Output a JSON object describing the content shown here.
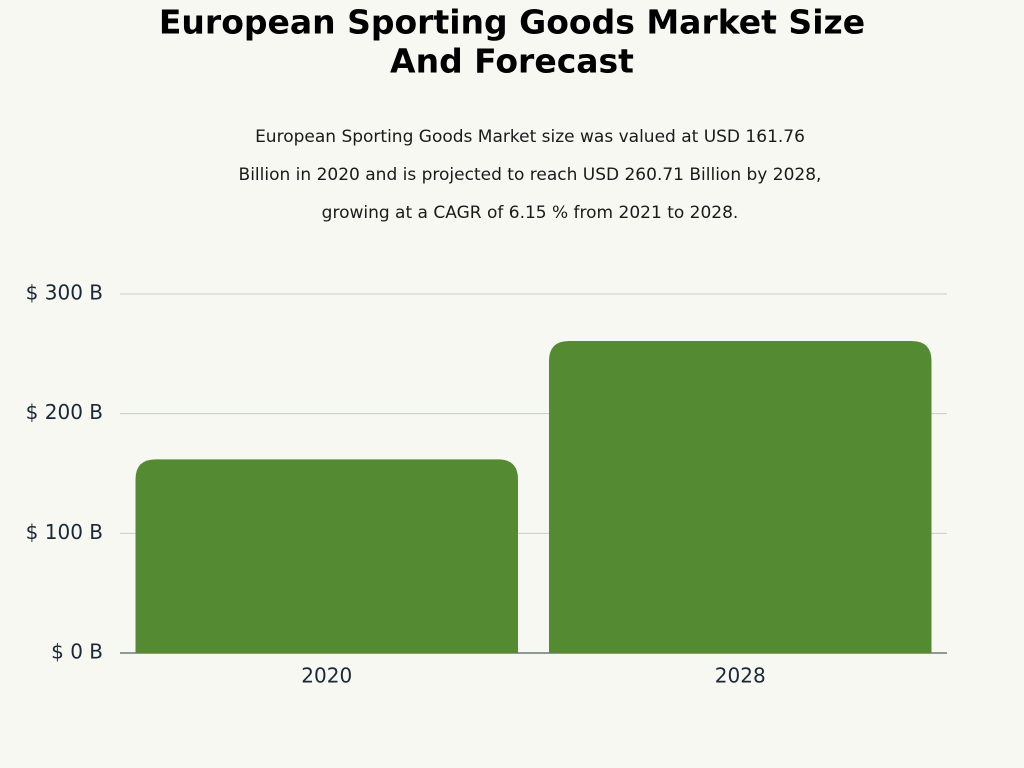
{
  "chart_data": {
    "type": "bar",
    "title": [
      "European Sporting Goods Market Size",
      "And Forecast"
    ],
    "subtitle": [
      "European Sporting Goods Market size was valued at USD 161.76",
      "Billion in 2020 and is projected to reach USD 260.71 Billion by 2028,",
      "growing at a CAGR of 6.15 % from 2021 to 2028."
    ],
    "categories": [
      "2020",
      "2028"
    ],
    "values": [
      161.76,
      260.71
    ],
    "color": "#548a31",
    "ylim": [
      0,
      300
    ],
    "yticks": [
      {
        "value": 0,
        "label": "$ 0 B"
      },
      {
        "value": 100,
        "label": "$ 100 B"
      },
      {
        "value": 200,
        "label": "$ 200 B"
      },
      {
        "value": 300,
        "label": "$ 300 B"
      }
    ],
    "grid": true
  }
}
